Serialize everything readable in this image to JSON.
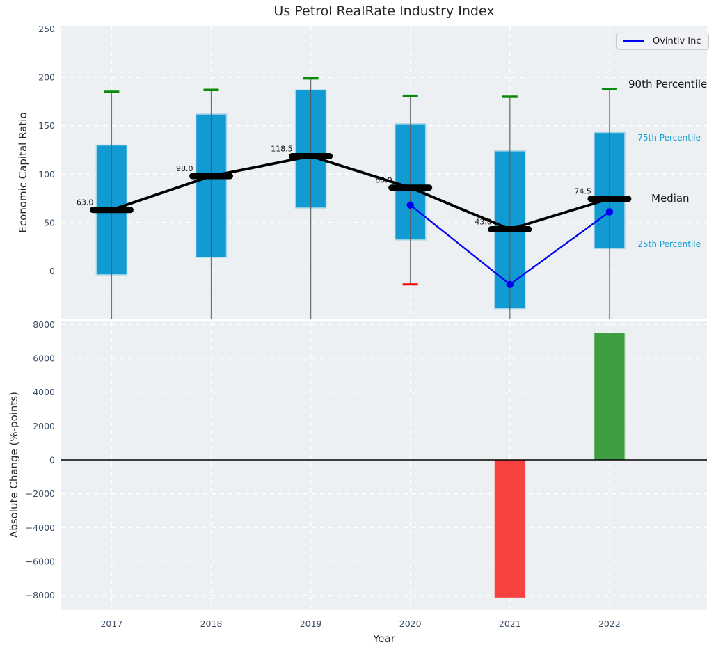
{
  "colors": {
    "plot_bg": "#edf0f2",
    "grid": "#ffffff",
    "box_fill": "#129bd2",
    "box_edge": "#a5d5e8",
    "cap_high": "#0a8a0a",
    "cap_low": "#ff0000",
    "whisker": "#5a5a5a",
    "median": "#000000",
    "ovintiv_line": "#0000ee",
    "bar_positive": "#3d9f42",
    "bar_negative": "#f84242",
    "tick_text": "#3d4e63",
    "annotation_cyan": "#1a9fd4",
    "zero_line": "#000000"
  },
  "chart_data": [
    {
      "type": "box-line",
      "title": "Us Petrol RealRate Industry Index",
      "ylabel": "Economic Capital Ratio",
      "categories": [
        "2017",
        "2018",
        "2019",
        "2020",
        "2021",
        "2022"
      ],
      "yticks": [
        250,
        200,
        150,
        100,
        50,
        0
      ],
      "ylim": [
        -49,
        253
      ],
      "grid": true,
      "legend_position": "upper right",
      "series_label": "Ovintiv Inc",
      "boxes": [
        {
          "year": "2017",
          "p90": 185,
          "p75": 130,
          "median": 63.0,
          "median_label": "63.0",
          "p25": -4,
          "p10": null
        },
        {
          "year": "2018",
          "p90": 187,
          "p75": 162,
          "median": 98.0,
          "median_label": "98.0",
          "p25": 14,
          "p10": null
        },
        {
          "year": "2019",
          "p90": 199,
          "p75": 187,
          "median": 118.5,
          "median_label": "118.5",
          "p25": 65,
          "p10": null
        },
        {
          "year": "2020",
          "p90": 181,
          "p75": 152,
          "median": 86.0,
          "median_label": "86.0",
          "p25": 32,
          "p10": -14
        },
        {
          "year": "2021",
          "p90": 180,
          "p75": 124,
          "median": 43.0,
          "median_label": "43.0",
          "p25": -39,
          "p10": null
        },
        {
          "year": "2022",
          "p90": 188,
          "p75": 143,
          "median": 74.5,
          "median_label": "74.5",
          "p25": 23,
          "p10": null
        }
      ],
      "ovintiv": {
        "label": "Ovintiv Inc",
        "points": [
          {
            "year": "2020",
            "value": 68
          },
          {
            "year": "2021",
            "value": -14
          },
          {
            "year": "2022",
            "value": 61
          }
        ]
      },
      "annotations": {
        "p90": "90th Percentile",
        "p75": "75th Percentile",
        "median": "Median",
        "p25": "25th Percentile"
      }
    },
    {
      "type": "bar",
      "ylabel": "Absolute Change (%-points)",
      "xlabel": "Year",
      "categories": [
        "2017",
        "2018",
        "2019",
        "2020",
        "2021",
        "2022"
      ],
      "values": [
        null,
        null,
        null,
        null,
        -8150,
        7500
      ],
      "yticks": [
        8000,
        6000,
        4000,
        2000,
        0,
        -2000,
        -4000,
        -6000,
        -8000
      ],
      "ylim": [
        -8900,
        8200
      ],
      "grid": true,
      "zero_line": 0
    }
  ]
}
